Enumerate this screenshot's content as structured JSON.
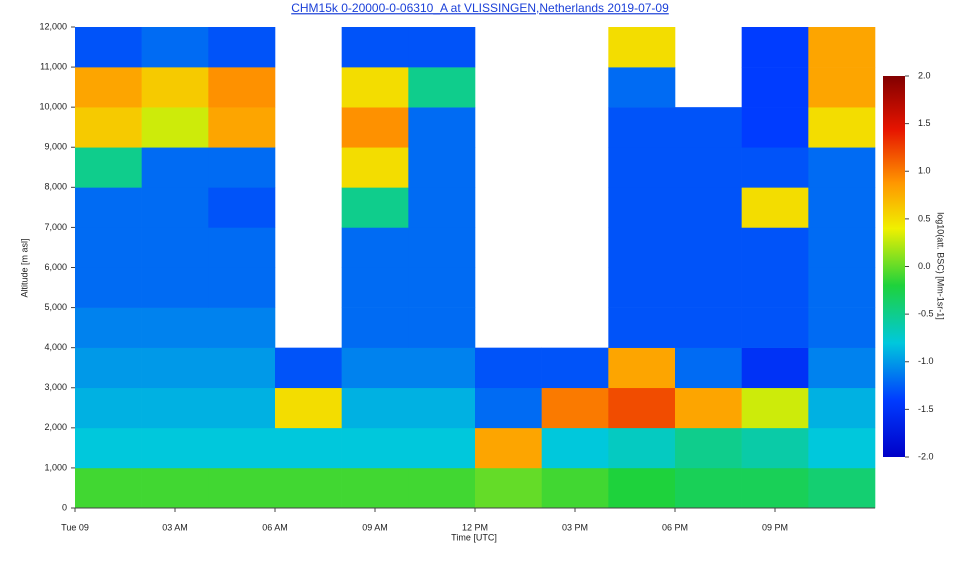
{
  "chart_data": {
    "type": "heatmap",
    "title": "CHM15k 0-20000-0-06310_A at VLISSINGEN,Netherlands 2019-07-09",
    "x_label": "Time [UTC]",
    "y_label": "Altitude [m asl]",
    "colorbar_label": "log10(att. BSC) [Mm-1sr-1]",
    "xlim": [
      0,
      24
    ],
    "xticks": [
      {
        "value": 0,
        "label": "Tue 09"
      },
      {
        "value": 3,
        "label": "03 AM"
      },
      {
        "value": 6,
        "label": "06 AM"
      },
      {
        "value": 9,
        "label": "09 AM"
      },
      {
        "value": 12,
        "label": "12 PM"
      },
      {
        "value": 15,
        "label": "03 PM"
      },
      {
        "value": 18,
        "label": "06 PM"
      },
      {
        "value": 21,
        "label": "09 PM"
      }
    ],
    "ylim": [
      0,
      12000
    ],
    "yticks": [
      0,
      {
        "value": 1000,
        "label": "1,000"
      },
      {
        "value": 2000,
        "label": "2,000"
      },
      {
        "value": 3000,
        "label": "3,000"
      },
      {
        "value": 4000,
        "label": "4,000"
      },
      {
        "value": 5000,
        "label": "5,000"
      },
      {
        "value": 6000,
        "label": "6,000"
      },
      {
        "value": 7000,
        "label": "7,000"
      },
      {
        "value": 8000,
        "label": "8,000"
      },
      {
        "value": 9000,
        "label": "9,000"
      },
      {
        "value": 10000,
        "label": "10,000"
      },
      {
        "value": 11000,
        "label": "11,000"
      },
      {
        "value": 12000,
        "label": "12,000"
      }
    ],
    "zlim": [
      -2,
      2
    ],
    "zticks": [
      {
        "value": -2,
        "label": "-2.0"
      },
      -1.5,
      {
        "value": -1,
        "label": "-1.0"
      },
      -0.5,
      {
        "value": 0,
        "label": "0.0"
      },
      0.5,
      {
        "value": 1,
        "label": "1.0"
      },
      1.5,
      {
        "value": 2,
        "label": "2.0"
      }
    ],
    "xbins": [
      0,
      2,
      4,
      6,
      8,
      10,
      12,
      14,
      16,
      18,
      20,
      22,
      24
    ],
    "ybins": [
      0,
      1000,
      2000,
      3000,
      4000,
      5000,
      6000,
      7000,
      8000,
      9000,
      10000,
      11000,
      12000
    ],
    "z": [
      [
        -0.1,
        -0.1,
        -0.1,
        -0.1,
        -0.1,
        -0.1,
        0,
        -0.1,
        -0.2,
        -0.3,
        -0.3,
        -0.4
      ],
      [
        -0.8,
        -0.8,
        -0.8,
        -0.8,
        -0.8,
        -0.8,
        0.8,
        -0.8,
        -0.7,
        -0.5,
        -0.6,
        -0.8
      ],
      [
        -0.9,
        -0.9,
        -0.9,
        0.5,
        -0.9,
        -0.9,
        -1.2,
        1.0,
        1.2,
        0.8,
        0.3,
        -0.9
      ],
      [
        -1.0,
        -1.0,
        -1.0,
        -1.3,
        -1.1,
        -1.1,
        -1.3,
        -1.3,
        0.8,
        -1.2,
        -1.5,
        -1.1
      ],
      [
        -1.1,
        -1.1,
        -1.1,
        null,
        -1.2,
        -1.2,
        null,
        null,
        -1.3,
        -1.3,
        -1.3,
        -1.2
      ],
      [
        -1.2,
        -1.2,
        -1.2,
        null,
        -1.2,
        -1.2,
        null,
        null,
        -1.3,
        -1.3,
        -1.3,
        -1.2
      ],
      [
        -1.2,
        -1.2,
        -1.2,
        null,
        -1.2,
        -1.2,
        null,
        null,
        -1.3,
        -1.3,
        -1.3,
        -1.2
      ],
      [
        -1.2,
        -1.2,
        -1.3,
        null,
        -0.5,
        -1.2,
        null,
        null,
        -1.3,
        -1.3,
        0.5,
        -1.2
      ],
      [
        -0.5,
        -1.2,
        -1.2,
        null,
        0.5,
        -1.2,
        null,
        null,
        -1.3,
        -1.3,
        -1.3,
        -1.2
      ],
      [
        0.6,
        0.3,
        0.8,
        null,
        0.9,
        -1.2,
        null,
        null,
        -1.3,
        -1.3,
        -1.4,
        0.5
      ],
      [
        0.8,
        0.6,
        0.9,
        null,
        0.5,
        -0.5,
        null,
        null,
        -1.2,
        null,
        -1.4,
        0.8
      ],
      [
        -1.3,
        -1.2,
        -1.3,
        null,
        -1.3,
        -1.3,
        null,
        null,
        0.5,
        null,
        -1.4,
        0.8
      ]
    ]
  }
}
